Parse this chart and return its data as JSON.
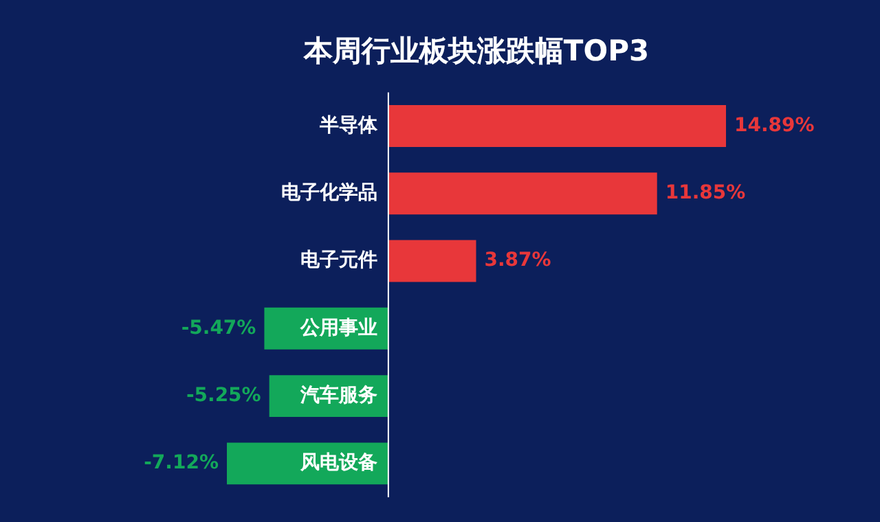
{
  "chart_data": {
    "type": "bar",
    "orientation": "horizontal",
    "title": "本周行业板块涨跌幅TOP3",
    "categories": [
      "半导体",
      "电子化学品",
      "电子元件",
      "公用事业",
      "汽车服务",
      "风电设备"
    ],
    "values": [
      14.89,
      11.85,
      3.87,
      -5.47,
      -5.25,
      -7.12
    ],
    "value_labels": [
      "14.89%",
      "11.85%",
      "3.87%",
      "-5.47%",
      "-5.25%",
      "-7.12%"
    ],
    "colors": [
      "#e8373a",
      "#e8373a",
      "#e8373a",
      "#13a85a",
      "#13a85a",
      "#13a85a"
    ]
  }
}
